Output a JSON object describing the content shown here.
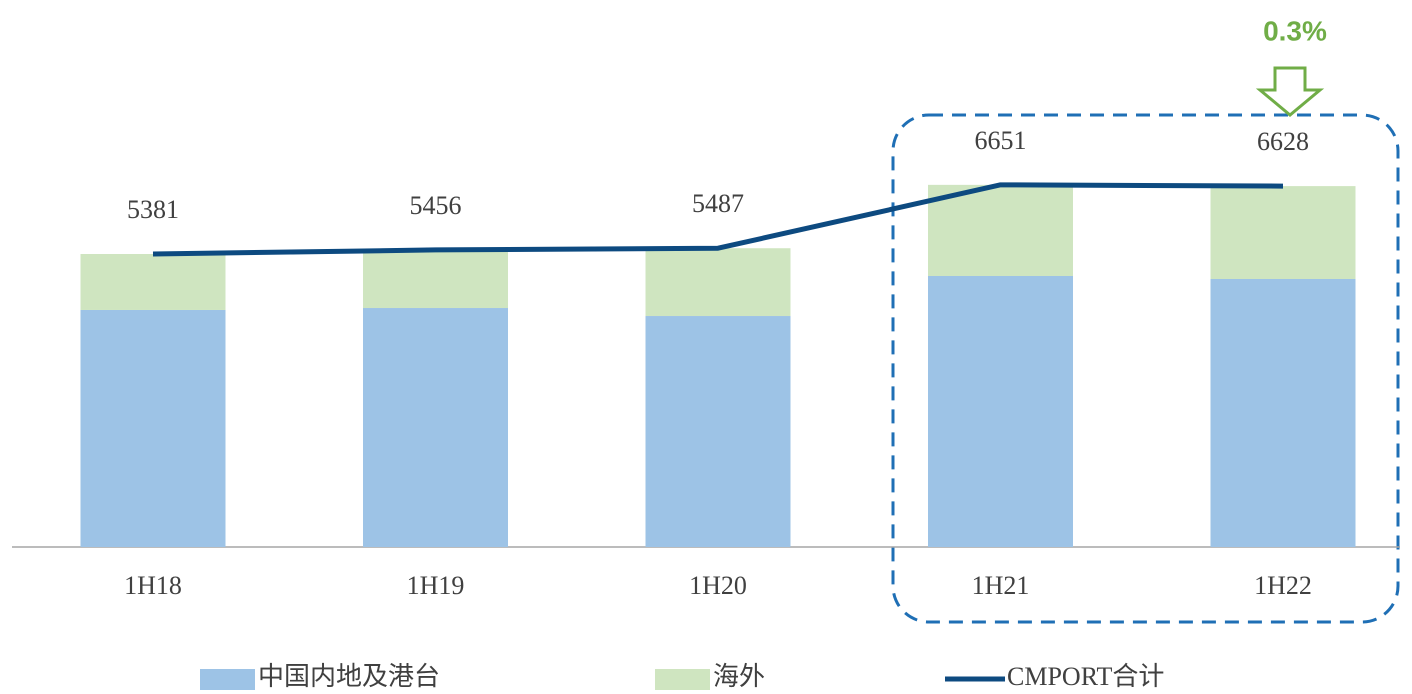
{
  "chart_data": {
    "type": "bar",
    "categories": [
      "1H18",
      "1H19",
      "1H20",
      "1H21",
      "1H22"
    ],
    "series": [
      {
        "name": "中国内地及港台",
        "color": "#9dc3e6",
        "type": "bar",
        "values": [
          4353,
          4389,
          4242,
          4977,
          4922
        ]
      },
      {
        "name": "海外",
        "color": "#cfe5c0",
        "type": "bar",
        "values": [
          1028,
          1067,
          1245,
          1674,
          1706
        ]
      },
      {
        "name": "CMPORT合计",
        "color": "#0d4a80",
        "type": "line",
        "values": [
          5381,
          5456,
          5487,
          6651,
          6628
        ]
      }
    ],
    "stacked": true,
    "ylim": [
      0,
      8000
    ],
    "annotation": "0.3%",
    "legend": "bottom"
  }
}
